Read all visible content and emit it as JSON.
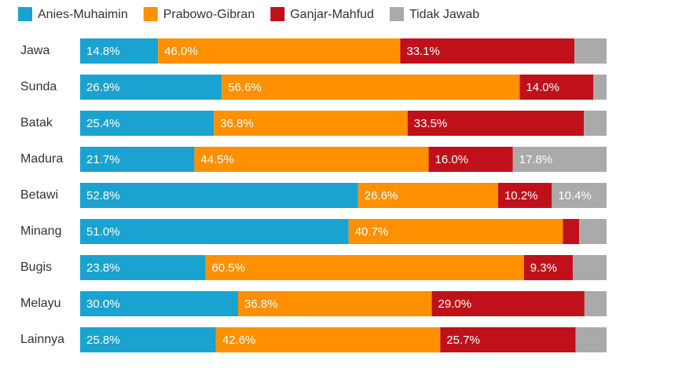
{
  "chart_data": {
    "type": "stacked-bar-horizontal",
    "categories": [
      "Jawa",
      "Sunda",
      "Batak",
      "Madura",
      "Betawi",
      "Minang",
      "Bugis",
      "Melayu",
      "Lainnya"
    ],
    "xlim": [
      0,
      100
    ],
    "series": [
      {
        "name": "Anies-Muhaimin",
        "color": "#1aa3d0",
        "values": [
          14.8,
          26.9,
          25.4,
          21.7,
          52.8,
          51.0,
          23.8,
          30.0,
          25.8
        ],
        "value_labels": [
          "14.8%",
          "26.9%",
          "25.4%",
          "21.7%",
          "52.8%",
          "51.0%",
          "23.8%",
          "30.0%",
          "25.8%"
        ]
      },
      {
        "name": "Prabowo-Gibran",
        "color": "#ff9000",
        "values": [
          46.0,
          56.6,
          36.8,
          44.5,
          26.6,
          40.7,
          60.5,
          36.8,
          42.6
        ],
        "value_labels": [
          "46.0%",
          "56.6%",
          "36.8%",
          "44.5%",
          "26.6%",
          "40.7%",
          "60.5%",
          "36.8%",
          "42.6%"
        ]
      },
      {
        "name": "Ganjar-Mahfud",
        "color": "#c0111a",
        "values": [
          33.1,
          14.0,
          33.5,
          16.0,
          10.2,
          3.1,
          9.3,
          29.0,
          25.7
        ],
        "value_labels": [
          "33.1%",
          "14.0%",
          "33.5%",
          "16.0%",
          "10.2%",
          null,
          "9.3%",
          "29.0%",
          "25.7%"
        ]
      },
      {
        "name": "Tidak Jawab",
        "color": "#aaaaaa",
        "values": [
          6.1,
          2.5,
          4.3,
          17.8,
          10.4,
          5.2,
          6.4,
          4.2,
          5.9
        ],
        "value_labels": [
          null,
          null,
          null,
          "17.8%",
          "10.4%",
          null,
          null,
          null,
          null
        ]
      }
    ]
  }
}
